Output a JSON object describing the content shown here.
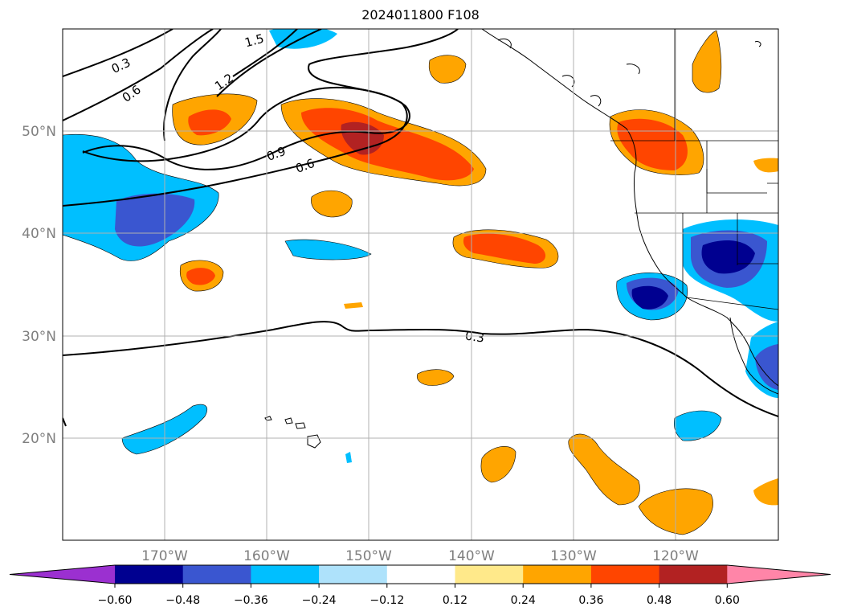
{
  "title": "2024011800 F108",
  "map": {
    "lon_labels": [
      "170°W",
      "160°W",
      "150°W",
      "140°W",
      "130°W",
      "120°W"
    ],
    "lat_labels": [
      "50°N",
      "40°N",
      "30°N",
      "20°N"
    ],
    "contour_labels": [
      "0.3",
      "0.6",
      "1.5",
      "1.2",
      "0.9",
      "0.6",
      "0.3"
    ]
  },
  "colorbar": {
    "ticks": [
      "−0.60",
      "−0.48",
      "−0.36",
      "−0.24",
      "−0.12",
      "0.12",
      "0.24",
      "0.36",
      "0.48",
      "0.60"
    ],
    "colors": [
      "#9b30d0",
      "#000090",
      "#3a56d0",
      "#00bfff",
      "#aee2fb",
      "#ffffff",
      "#ffe98a",
      "#ffa500",
      "#ff4500",
      "#b22222",
      "#ff85a8"
    ]
  }
}
